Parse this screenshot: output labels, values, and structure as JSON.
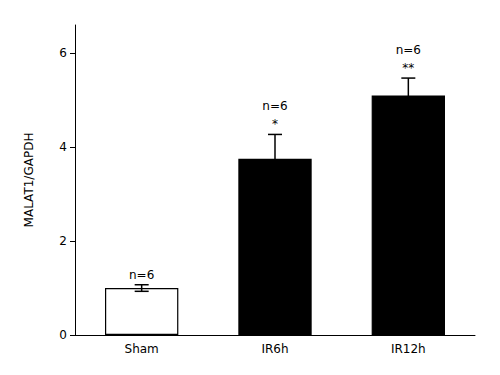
{
  "chart_data": {
    "type": "bar",
    "categories": [
      "Sham",
      "IR6h",
      "IR12h"
    ],
    "values": [
      1.0,
      3.75,
      5.1
    ],
    "errors": [
      0.07,
      0.52,
      0.37
    ],
    "colors": [
      "#ffffff",
      "#000000",
      "#000000"
    ],
    "ylabel": "MALAT1/GAPDH",
    "ylim": [
      0,
      6.6
    ],
    "yticks": [
      0,
      2,
      4,
      6
    ],
    "grid": false,
    "annotations": [
      {
        "x": "Sham",
        "text": "n=6"
      },
      {
        "x": "IR6h",
        "text": "*"
      },
      {
        "x": "IR6h",
        "text": "n=6"
      },
      {
        "x": "IR12h",
        "text": "**"
      },
      {
        "x": "IR12h",
        "text": "n=6"
      }
    ]
  }
}
